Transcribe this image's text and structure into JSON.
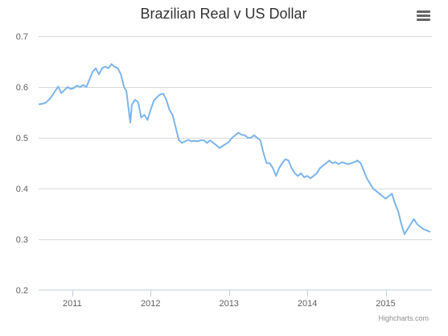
{
  "colors": {
    "series": "#7cb5ec",
    "grid": "#d8d8d8",
    "axis_line": "#c0d0e0",
    "text": "#333333",
    "menu_icon": "#666666",
    "credits": "#909090"
  },
  "menu": {
    "icon": "hamburger-menu-icon"
  },
  "credits": {
    "label": "Highcharts.com"
  },
  "chart_data": {
    "type": "line",
    "title": "Brazilian Real v US Dollar",
    "subtitle": "",
    "xlabel": "",
    "ylabel": "",
    "ylim": [
      0.2,
      0.7
    ],
    "y_ticks": [
      0.2,
      0.3,
      0.4,
      0.5,
      0.6,
      0.7
    ],
    "y_tick_labels": [
      "0.2",
      "0.3",
      "0.4",
      "0.5",
      "0.6",
      "0.7"
    ],
    "x_ticks": [
      2011,
      2012,
      2013,
      2014,
      2015
    ],
    "x_tick_labels": [
      "2011",
      "2012",
      "2013",
      "2014",
      "2015"
    ],
    "xlim": [
      2010.57,
      2015.59
    ],
    "grid": true,
    "legend": "none",
    "series": [
      {
        "x": [
          2010.58,
          2010.62,
          2010.66,
          2010.7,
          2010.74,
          2010.78,
          2010.82,
          2010.86,
          2010.9,
          2010.94,
          2010.98,
          2011.02,
          2011.06,
          2011.1,
          2011.14,
          2011.18,
          2011.22,
          2011.26,
          2011.3,
          2011.34,
          2011.38,
          2011.42,
          2011.46,
          2011.5,
          2011.54,
          2011.58,
          2011.62,
          2011.66,
          2011.69,
          2011.72,
          2011.74,
          2011.76,
          2011.8,
          2011.84,
          2011.88,
          2011.92,
          2011.96,
          2012.0,
          2012.04,
          2012.08,
          2012.12,
          2012.16,
          2012.2,
          2012.24,
          2012.28,
          2012.32,
          2012.36,
          2012.4,
          2012.44,
          2012.48,
          2012.52,
          2012.56,
          2012.6,
          2012.64,
          2012.68,
          2012.72,
          2012.76,
          2012.8,
          2012.84,
          2012.88,
          2012.92,
          2012.96,
          2013.0,
          2013.04,
          2013.08,
          2013.12,
          2013.16,
          2013.2,
          2013.24,
          2013.28,
          2013.32,
          2013.36,
          2013.4,
          2013.44,
          2013.48,
          2013.52,
          2013.56,
          2013.6,
          2013.64,
          2013.68,
          2013.72,
          2013.76,
          2013.8,
          2013.84,
          2013.88,
          2013.92,
          2013.96,
          2014.0,
          2014.04,
          2014.08,
          2014.12,
          2014.16,
          2014.2,
          2014.24,
          2014.28,
          2014.32,
          2014.36,
          2014.4,
          2014.44,
          2014.48,
          2014.52,
          2014.56,
          2014.6,
          2014.64,
          2014.68,
          2014.72,
          2014.76,
          2014.8,
          2014.84,
          2014.88,
          2014.92,
          2014.96,
          2015.0,
          2015.04,
          2015.08,
          2015.12,
          2015.16,
          2015.2,
          2015.24,
          2015.28,
          2015.32,
          2015.36,
          2015.4,
          2015.44,
          2015.48,
          2015.52,
          2015.56
        ],
        "values": [
          0.566,
          0.567,
          0.569,
          0.575,
          0.582,
          0.592,
          0.601,
          0.588,
          0.594,
          0.6,
          0.596,
          0.598,
          0.603,
          0.6,
          0.604,
          0.6,
          0.615,
          0.63,
          0.637,
          0.625,
          0.637,
          0.64,
          0.637,
          0.645,
          0.64,
          0.637,
          0.625,
          0.6,
          0.592,
          0.555,
          0.53,
          0.565,
          0.575,
          0.57,
          0.54,
          0.545,
          0.535,
          0.555,
          0.573,
          0.58,
          0.585,
          0.587,
          0.575,
          0.555,
          0.545,
          0.52,
          0.495,
          0.49,
          0.493,
          0.496,
          0.493,
          0.494,
          0.493,
          0.495,
          0.495,
          0.49,
          0.495,
          0.49,
          0.485,
          0.48,
          0.484,
          0.488,
          0.492,
          0.5,
          0.505,
          0.51,
          0.506,
          0.505,
          0.5,
          0.5,
          0.505,
          0.5,
          0.495,
          0.47,
          0.45,
          0.45,
          0.44,
          0.425,
          0.44,
          0.45,
          0.458,
          0.455,
          0.44,
          0.43,
          0.425,
          0.43,
          0.422,
          0.425,
          0.42,
          0.425,
          0.43,
          0.44,
          0.445,
          0.45,
          0.455,
          0.45,
          0.452,
          0.448,
          0.452,
          0.45,
          0.448,
          0.45,
          0.452,
          0.455,
          0.45,
          0.435,
          0.42,
          0.41,
          0.4,
          0.395,
          0.39,
          0.385,
          0.38,
          0.385,
          0.39,
          0.37,
          0.355,
          0.33,
          0.31,
          0.32,
          0.33,
          0.34,
          0.33,
          0.325,
          0.32,
          0.318,
          0.315
        ]
      }
    ]
  }
}
